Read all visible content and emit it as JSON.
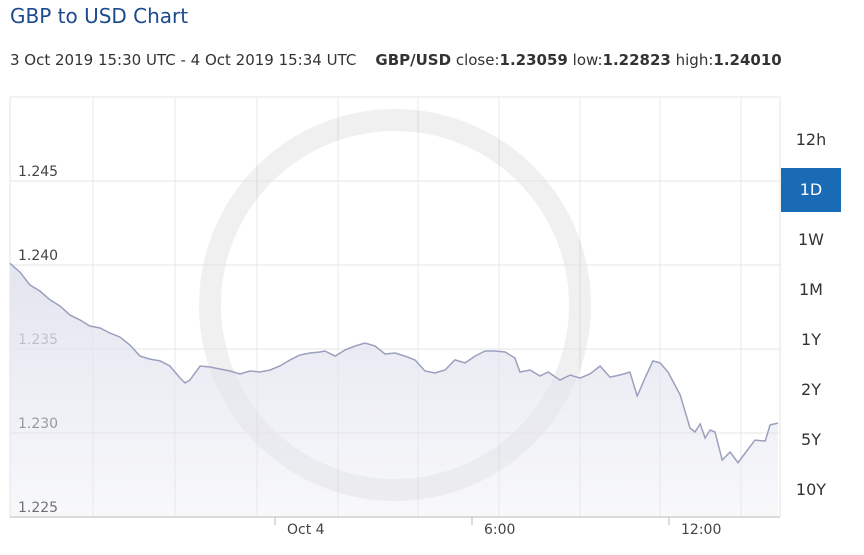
{
  "header": {
    "title": "GBP to USD Chart",
    "range": "3 Oct 2019 15:30 UTC - 4 Oct 2019 15:34 UTC",
    "pair": "GBP/USD",
    "stats": [
      {
        "label": "close:",
        "value": "1.23059"
      },
      {
        "label": "low:",
        "value": "1.22823"
      },
      {
        "label": "high:",
        "value": "1.24010"
      }
    ]
  },
  "range_buttons": [
    "12h",
    "1D",
    "1W",
    "1M",
    "1Y",
    "2Y",
    "5Y",
    "10Y"
  ],
  "selected_button": 1,
  "chart_data": {
    "type": "area",
    "line_color": "#9aa0bd",
    "fill_color": "#e3e5ef",
    "x": [
      -8.07,
      -7.77,
      -7.46,
      -7.16,
      -6.85,
      -6.55,
      -6.24,
      -5.94,
      -5.64,
      -5.33,
      -5.03,
      -4.72,
      -4.42,
      -4.11,
      -3.81,
      -3.5,
      -3.2,
      -2.89,
      -2.74,
      -2.59,
      -2.28,
      -1.98,
      -1.68,
      -1.37,
      -1.07,
      -0.76,
      -0.46,
      -0.15,
      0.15,
      0.46,
      0.76,
      1.07,
      1.37,
      1.52,
      1.83,
      2.13,
      2.44,
      2.74,
      3.05,
      3.35,
      3.66,
      3.96,
      4.26,
      4.57,
      4.87,
      5.18,
      5.48,
      5.79,
      6.09,
      6.4,
      6.7,
      7.01,
      7.31,
      7.46,
      7.77,
      8.07,
      8.32,
      8.68,
      8.99,
      9.29,
      9.59,
      9.9,
      10.2,
      10.51,
      10.81,
      11.03,
      11.27,
      11.51,
      11.73,
      11.97,
      12.34,
      12.64,
      12.79,
      12.95,
      13.1,
      13.25,
      13.4,
      13.62,
      13.86,
      14.1,
      14.32,
      14.62,
      14.93,
      15.08,
      15.32
    ],
    "values": [
      1.2401,
      1.23958,
      1.23881,
      1.23845,
      1.23792,
      1.23756,
      1.23702,
      1.23673,
      1.23637,
      1.23625,
      1.23595,
      1.23571,
      1.23524,
      1.23458,
      1.2344,
      1.23429,
      1.23399,
      1.23327,
      1.23298,
      1.23315,
      1.23399,
      1.23393,
      1.23381,
      1.23369,
      1.23351,
      1.23369,
      1.23363,
      1.23375,
      1.23399,
      1.23435,
      1.23464,
      1.23476,
      1.23482,
      1.23488,
      1.23458,
      1.23494,
      1.23518,
      1.23536,
      1.23518,
      1.2347,
      1.23476,
      1.23458,
      1.23435,
      1.23369,
      1.23357,
      1.23375,
      1.23435,
      1.23417,
      1.23458,
      1.23488,
      1.23488,
      1.23482,
      1.23446,
      1.23363,
      1.23375,
      1.23339,
      1.23363,
      1.23315,
      1.23345,
      1.23327,
      1.23351,
      1.23399,
      1.23333,
      1.23345,
      1.23363,
      1.2322,
      1.23327,
      1.23429,
      1.23417,
      1.23363,
      1.23226,
      1.2303,
      1.23006,
      1.23054,
      1.2297,
      1.23018,
      1.23006,
      1.22839,
      1.22887,
      1.22823,
      1.22881,
      1.22958,
      1.22952,
      1.23048,
      1.23059
    ],
    "xlim": [
      -8.07,
      15.38
    ],
    "xticks": [
      {
        "value": 0,
        "label": "Oct 4"
      },
      {
        "value": 6,
        "label": "6:00"
      },
      {
        "value": 12,
        "label": "12:00"
      }
    ],
    "ylim": [
      1.225,
      1.25
    ],
    "yticks": [
      {
        "value": 1.225,
        "label": "1.225"
      },
      {
        "value": 1.23,
        "label": "1.230"
      },
      {
        "value": 1.235,
        "label": "1.235"
      },
      {
        "value": 1.24,
        "label": "1.240"
      },
      {
        "value": 1.245,
        "label": "1.245"
      }
    ],
    "grid": true
  }
}
